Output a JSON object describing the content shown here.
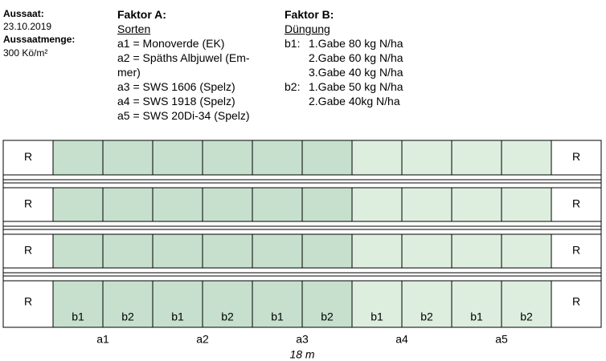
{
  "header": {
    "sowing_label": "Aussaat:",
    "sowing_date": "23.10.2019",
    "rate_label": "Aussaatmenge:",
    "rate_value": "300 Kö/m²",
    "factor_a": {
      "title": "Faktor A:",
      "subtitle": "Sorten",
      "lines": [
        "a1 = Monoverde (EK)",
        "a2 = Späths Albjuwel (Em-",
        "mer)",
        "a3 = SWS 1606 (Spelz)",
        "a4 = SWS 1918 (Spelz)",
        "a5 = SWS 20Di-34 (Spelz)"
      ]
    },
    "factor_b": {
      "title": "Faktor B:",
      "subtitle": "Düngung",
      "groups": [
        {
          "label": "b1:",
          "lines": [
            "1.Gabe 80 kg N/ha",
            "2.Gabe 60 kg N/ha",
            "3.Gabe 40 kg N/ha"
          ]
        },
        {
          "label": "b2:",
          "lines": [
            "1.Gabe 50 kg N/ha",
            "2.Gabe 40kg N/ha"
          ]
        }
      ]
    }
  },
  "field": {
    "rows": [
      {
        "left": "R",
        "right": "R"
      },
      {
        "left": "R",
        "right": "R"
      },
      {
        "left": "R",
        "right": "R"
      },
      {
        "left": "R",
        "right": "R"
      }
    ],
    "plot_labels": [
      "b1",
      "b2",
      "b1",
      "b2",
      "b1",
      "b2",
      "b1",
      "b2",
      "b1",
      "b2"
    ],
    "variety_labels": [
      "a1",
      "a2",
      "a3",
      "a4",
      "a5"
    ],
    "length": "18 m"
  }
}
